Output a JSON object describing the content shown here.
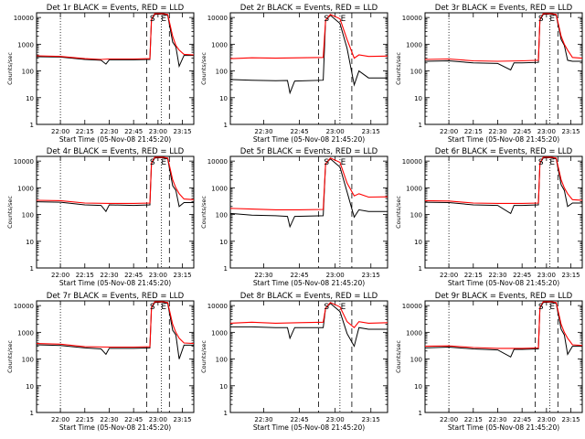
{
  "chart_data": [
    {
      "type": "line",
      "title": "Det 1r BLACK = Events, RED = LLD",
      "xlabel": "Start Time (05-Nov-08 21:45:20)",
      "ylabel": "Counts/sec",
      "yscale": "log",
      "ylim": [
        1,
        15000
      ],
      "xlim": [
        "21:45:20",
        "23:22"
      ],
      "x_ticks": [
        "22:00",
        "22:15",
        "22:30",
        "22:45",
        "23:00",
        "23:15"
      ],
      "y_ticks": [
        "1",
        "10",
        "100",
        "1000",
        "10000"
      ],
      "markers": [
        "S",
        "E"
      ],
      "colors": {
        "events": "#000000",
        "lld": "#ff0000",
        "axes": "#000000"
      },
      "series": [
        {
          "name": "Events",
          "x": [
            "21:45:20",
            "22:00",
            "22:15",
            "22:25",
            "22:28",
            "22:30",
            "22:45",
            "22:55",
            "22:56",
            "22:58",
            "23:03",
            "23:06",
            "23:09",
            "23:11",
            "23:13",
            "23:16",
            "23:22"
          ],
          "values": [
            340,
            330,
            270,
            250,
            180,
            260,
            260,
            270,
            8000,
            13000,
            13500,
            12000,
            1200,
            800,
            150,
            380,
            380
          ]
        },
        {
          "name": "LLD",
          "x": [
            "21:45:20",
            "22:00",
            "22:15",
            "22:25",
            "22:30",
            "22:45",
            "22:55",
            "22:56",
            "22:58",
            "23:03",
            "23:06",
            "23:09",
            "23:11",
            "23:13",
            "23:16",
            "23:22"
          ],
          "values": [
            370,
            350,
            290,
            270,
            280,
            280,
            290,
            8500,
            14000,
            14000,
            13000,
            2000,
            900,
            600,
            420,
            400
          ]
        }
      ]
    },
    {
      "type": "line",
      "title": "Det 2r BLACK = Events, RED = LLD",
      "xlabel": "Start Time (05-Nov-08 21:45:20)",
      "ylabel": "Counts/sec",
      "yscale": "log",
      "ylim": [
        1,
        15000
      ],
      "xlim": [
        "22:16",
        "23:22"
      ],
      "x_ticks": [
        "22:30",
        "22:45",
        "23:00",
        "23:15"
      ],
      "y_ticks": [
        "1",
        "10",
        "100",
        "1000",
        "10000"
      ],
      "markers": [
        "S",
        "E"
      ],
      "colors": {
        "events": "#000000",
        "lld": "#ff0000",
        "axes": "#000000"
      },
      "series": [
        {
          "name": "Events",
          "x": [
            "22:16",
            "22:25",
            "22:35",
            "22:40",
            "22:41",
            "22:43",
            "22:55",
            "22:56",
            "22:58",
            "23:02",
            "23:05",
            "23:08",
            "23:10",
            "23:14",
            "23:22"
          ],
          "values": [
            48,
            45,
            43,
            44,
            15,
            42,
            45,
            8000,
            12000,
            6000,
            700,
            30,
            100,
            55,
            55
          ]
        },
        {
          "name": "LLD",
          "x": [
            "22:16",
            "22:25",
            "22:35",
            "22:45",
            "22:55",
            "22:56",
            "22:58",
            "23:02",
            "23:05",
            "23:08",
            "23:10",
            "23:14",
            "23:22"
          ],
          "values": [
            290,
            310,
            300,
            310,
            320,
            8000,
            13000,
            9000,
            1500,
            300,
            400,
            350,
            360
          ]
        }
      ]
    },
    {
      "type": "line",
      "title": "Det 3r BLACK = Events, RED = LLD",
      "xlabel": "Start Time (05-Nov-08 21:45:20)",
      "ylabel": "Counts/sec",
      "yscale": "log",
      "ylim": [
        1,
        15000
      ],
      "xlim": [
        "21:45:20",
        "23:22"
      ],
      "x_ticks": [
        "22:00",
        "22:15",
        "22:30",
        "22:45",
        "23:00",
        "23:15"
      ],
      "y_ticks": [
        "1",
        "10",
        "100",
        "1000",
        "10000"
      ],
      "markers": [
        "S",
        "E"
      ],
      "colors": {
        "events": "#000000",
        "lld": "#ff0000",
        "axes": "#000000"
      },
      "series": [
        {
          "name": "Events",
          "x": [
            "21:45:20",
            "22:00",
            "22:15",
            "22:30",
            "22:38",
            "22:40",
            "22:45",
            "22:55",
            "22:56",
            "22:58",
            "23:03",
            "23:06",
            "23:09",
            "23:11",
            "23:13",
            "23:16",
            "23:22"
          ],
          "values": [
            230,
            240,
            200,
            190,
            110,
            200,
            200,
            210,
            8000,
            13000,
            13500,
            12000,
            1500,
            900,
            250,
            230,
            230
          ]
        },
        {
          "name": "LLD",
          "x": [
            "21:45:20",
            "22:00",
            "22:15",
            "22:30",
            "22:45",
            "22:55",
            "22:56",
            "22:58",
            "23:03",
            "23:06",
            "23:09",
            "23:11",
            "23:13",
            "23:16",
            "23:22"
          ],
          "values": [
            270,
            280,
            240,
            230,
            240,
            250,
            8500,
            14000,
            14000,
            13000,
            2000,
            1000,
            600,
            320,
            300
          ]
        }
      ]
    },
    {
      "type": "line",
      "title": "Det 4r BLACK = Events, RED = LLD",
      "xlabel": "Start Time (05-Nov-08 21:45:20)",
      "ylabel": "Counts/sec",
      "yscale": "log",
      "ylim": [
        1,
        15000
      ],
      "xlim": [
        "21:45:20",
        "23:22"
      ],
      "x_ticks": [
        "22:00",
        "22:15",
        "22:30",
        "22:45",
        "23:00",
        "23:15"
      ],
      "y_ticks": [
        "1",
        "10",
        "100",
        "1000",
        "10000"
      ],
      "markers": [
        "S",
        "E"
      ],
      "colors": {
        "events": "#000000",
        "lld": "#ff0000",
        "axes": "#000000"
      },
      "series": [
        {
          "name": "Events",
          "x": [
            "21:45:20",
            "22:00",
            "22:15",
            "22:25",
            "22:28",
            "22:30",
            "22:45",
            "22:55",
            "22:56",
            "22:58",
            "23:03",
            "23:06",
            "23:09",
            "23:11",
            "23:13",
            "23:16",
            "23:22"
          ],
          "values": [
            300,
            290,
            230,
            220,
            130,
            230,
            220,
            230,
            8000,
            13000,
            13500,
            12000,
            1200,
            800,
            200,
            280,
            280
          ]
        },
        {
          "name": "LLD",
          "x": [
            "21:45:20",
            "22:00",
            "22:15",
            "22:30",
            "22:45",
            "22:55",
            "22:56",
            "22:58",
            "23:03",
            "23:06",
            "23:09",
            "23:11",
            "23:13",
            "23:16",
            "23:22"
          ],
          "values": [
            340,
            330,
            270,
            260,
            260,
            270,
            8500,
            14000,
            14000,
            13000,
            2000,
            1000,
            600,
            380,
            360
          ]
        }
      ]
    },
    {
      "type": "line",
      "title": "Det 5r BLACK = Events, RED = LLD",
      "xlabel": "Start Time (05-Nov-08 21:45:20)",
      "ylabel": "Counts/sec",
      "yscale": "log",
      "ylim": [
        1,
        15000
      ],
      "xlim": [
        "22:16",
        "23:22"
      ],
      "x_ticks": [
        "22:30",
        "22:45",
        "23:00",
        "23:15"
      ],
      "y_ticks": [
        "1",
        "10",
        "100",
        "1000",
        "10000"
      ],
      "markers": [
        "S",
        "E"
      ],
      "colors": {
        "events": "#000000",
        "lld": "#ff0000",
        "axes": "#000000"
      },
      "series": [
        {
          "name": "Events",
          "x": [
            "22:16",
            "22:25",
            "22:35",
            "22:40",
            "22:41",
            "22:43",
            "22:55",
            "22:56",
            "22:58",
            "23:02",
            "23:05",
            "23:08",
            "23:10",
            "23:14",
            "23:22"
          ],
          "values": [
            110,
            95,
            90,
            85,
            35,
            85,
            90,
            8000,
            12000,
            6000,
            700,
            80,
            150,
            130,
            130
          ]
        },
        {
          "name": "LLD",
          "x": [
            "22:16",
            "22:25",
            "22:35",
            "22:45",
            "22:55",
            "22:56",
            "22:58",
            "23:02",
            "23:05",
            "23:08",
            "23:10",
            "23:14",
            "23:22"
          ],
          "values": [
            170,
            160,
            150,
            150,
            155,
            8000,
            13000,
            9000,
            1500,
            500,
            600,
            450,
            460
          ]
        }
      ]
    },
    {
      "type": "line",
      "title": "Det 6r BLACK = Events, RED = LLD",
      "xlabel": "Start Time (05-Nov-08 21:45:20)",
      "ylabel": "Counts/sec",
      "yscale": "log",
      "ylim": [
        1,
        15000
      ],
      "xlim": [
        "21:45:20",
        "23:22"
      ],
      "x_ticks": [
        "22:00",
        "22:15",
        "22:30",
        "22:45",
        "23:00",
        "23:15"
      ],
      "y_ticks": [
        "1",
        "10",
        "100",
        "1000",
        "10000"
      ],
      "markers": [
        "S",
        "E"
      ],
      "colors": {
        "events": "#000000",
        "lld": "#ff0000",
        "axes": "#000000"
      },
      "series": [
        {
          "name": "Events",
          "x": [
            "21:45:20",
            "22:00",
            "22:15",
            "22:30",
            "22:38",
            "22:40",
            "22:45",
            "22:55",
            "22:56",
            "22:58",
            "23:03",
            "23:06",
            "23:09",
            "23:11",
            "23:13",
            "23:16",
            "23:22"
          ],
          "values": [
            290,
            280,
            230,
            220,
            110,
            220,
            220,
            230,
            8000,
            13000,
            13500,
            12000,
            1300,
            800,
            200,
            270,
            270
          ]
        },
        {
          "name": "LLD",
          "x": [
            "21:45:20",
            "22:00",
            "22:15",
            "22:30",
            "22:45",
            "22:55",
            "22:56",
            "22:58",
            "23:03",
            "23:06",
            "23:09",
            "23:11",
            "23:13",
            "23:16",
            "23:22"
          ],
          "values": [
            330,
            320,
            270,
            260,
            260,
            270,
            8500,
            14000,
            14000,
            13000,
            2000,
            1000,
            600,
            360,
            340
          ]
        }
      ]
    },
    {
      "type": "line",
      "title": "Det 7r BLACK = Events, RED = LLD",
      "xlabel": "Start Time (05-Nov-08 21:45:20)",
      "ylabel": "Counts/sec",
      "yscale": "log",
      "ylim": [
        1,
        15000
      ],
      "xlim": [
        "21:45:20",
        "23:22"
      ],
      "x_ticks": [
        "22:00",
        "22:15",
        "22:30",
        "22:45",
        "23:00",
        "23:15"
      ],
      "y_ticks": [
        "1",
        "10",
        "100",
        "1000",
        "10000"
      ],
      "markers": [
        "S",
        "E"
      ],
      "colors": {
        "events": "#000000",
        "lld": "#ff0000",
        "axes": "#000000"
      },
      "series": [
        {
          "name": "Events",
          "x": [
            "21:45:20",
            "22:00",
            "22:15",
            "22:25",
            "22:28",
            "22:30",
            "22:45",
            "22:55",
            "22:56",
            "22:58",
            "23:03",
            "23:06",
            "23:09",
            "23:11",
            "23:13",
            "23:16",
            "23:22"
          ],
          "values": [
            340,
            320,
            260,
            240,
            150,
            250,
            250,
            260,
            8000,
            13000,
            13500,
            12000,
            1200,
            800,
            100,
            330,
            330
          ]
        },
        {
          "name": "LLD",
          "x": [
            "21:45:20",
            "22:00",
            "22:15",
            "22:30",
            "22:45",
            "22:55",
            "22:56",
            "22:58",
            "23:03",
            "23:06",
            "23:09",
            "23:11",
            "23:13",
            "23:16",
            "23:22"
          ],
          "values": [
            380,
            360,
            290,
            280,
            280,
            290,
            8500,
            14000,
            14000,
            13000,
            2000,
            1000,
            600,
            400,
            380
          ]
        }
      ]
    },
    {
      "type": "line",
      "title": "Det 8r BLACK = Events, RED = LLD",
      "xlabel": "Start Time (05-Nov-08 21:45:20)",
      "ylabel": "Counts/sec",
      "yscale": "log",
      "ylim": [
        1,
        15000
      ],
      "xlim": [
        "22:16",
        "23:22"
      ],
      "x_ticks": [
        "22:30",
        "22:45",
        "23:00",
        "23:15"
      ],
      "y_ticks": [
        "1",
        "10",
        "100",
        "1000",
        "10000"
      ],
      "markers": [
        "S",
        "E"
      ],
      "colors": {
        "events": "#000000",
        "lld": "#ff0000",
        "axes": "#000000"
      },
      "series": [
        {
          "name": "Events",
          "x": [
            "22:16",
            "22:25",
            "22:35",
            "22:40",
            "22:41",
            "22:43",
            "22:55",
            "22:56",
            "22:58",
            "23:02",
            "23:05",
            "23:08",
            "23:10",
            "23:14",
            "23:22"
          ],
          "values": [
            1600,
            1600,
            1500,
            1500,
            600,
            1500,
            1500,
            8000,
            12000,
            6000,
            900,
            300,
            1500,
            1300,
            1300
          ]
        },
        {
          "name": "LLD",
          "x": [
            "22:16",
            "22:25",
            "22:35",
            "22:45",
            "22:55",
            "22:56",
            "22:58",
            "23:02",
            "23:05",
            "23:08",
            "23:10",
            "23:14",
            "23:22"
          ],
          "values": [
            2200,
            2400,
            2200,
            2300,
            2400,
            8000,
            13000,
            9000,
            2500,
            1500,
            2500,
            2200,
            2300
          ]
        }
      ]
    },
    {
      "type": "line",
      "title": "Det 9r BLACK = Events, RED = LLD",
      "xlabel": "Start Time (05-Nov-08 21:45:20)",
      "ylabel": "Counts/sec",
      "yscale": "log",
      "ylim": [
        1,
        15000
      ],
      "xlim": [
        "21:45:20",
        "23:22"
      ],
      "x_ticks": [
        "22:00",
        "22:15",
        "22:30",
        "22:45",
        "23:00",
        "23:15"
      ],
      "y_ticks": [
        "1",
        "10",
        "100",
        "1000",
        "10000"
      ],
      "markers": [
        "S",
        "E"
      ],
      "colors": {
        "events": "#000000",
        "lld": "#ff0000",
        "axes": "#000000"
      },
      "series": [
        {
          "name": "Events",
          "x": [
            "21:45:20",
            "22:00",
            "22:15",
            "22:30",
            "22:38",
            "22:40",
            "22:45",
            "22:55",
            "22:56",
            "22:58",
            "23:03",
            "23:06",
            "23:09",
            "23:11",
            "23:13",
            "23:16",
            "23:22"
          ],
          "values": [
            260,
            280,
            240,
            220,
            120,
            230,
            230,
            240,
            8000,
            13000,
            13500,
            12000,
            1300,
            800,
            150,
            300,
            300
          ]
        },
        {
          "name": "LLD",
          "x": [
            "21:45:20",
            "22:00",
            "22:15",
            "22:30",
            "22:45",
            "22:55",
            "22:56",
            "22:58",
            "23:03",
            "23:06",
            "23:09",
            "23:11",
            "23:13",
            "23:16",
            "23:22"
          ],
          "values": [
            300,
            310,
            270,
            250,
            250,
            260,
            8500,
            14000,
            14000,
            13000,
            2000,
            1000,
            600,
            340,
            320
          ]
        }
      ]
    }
  ]
}
